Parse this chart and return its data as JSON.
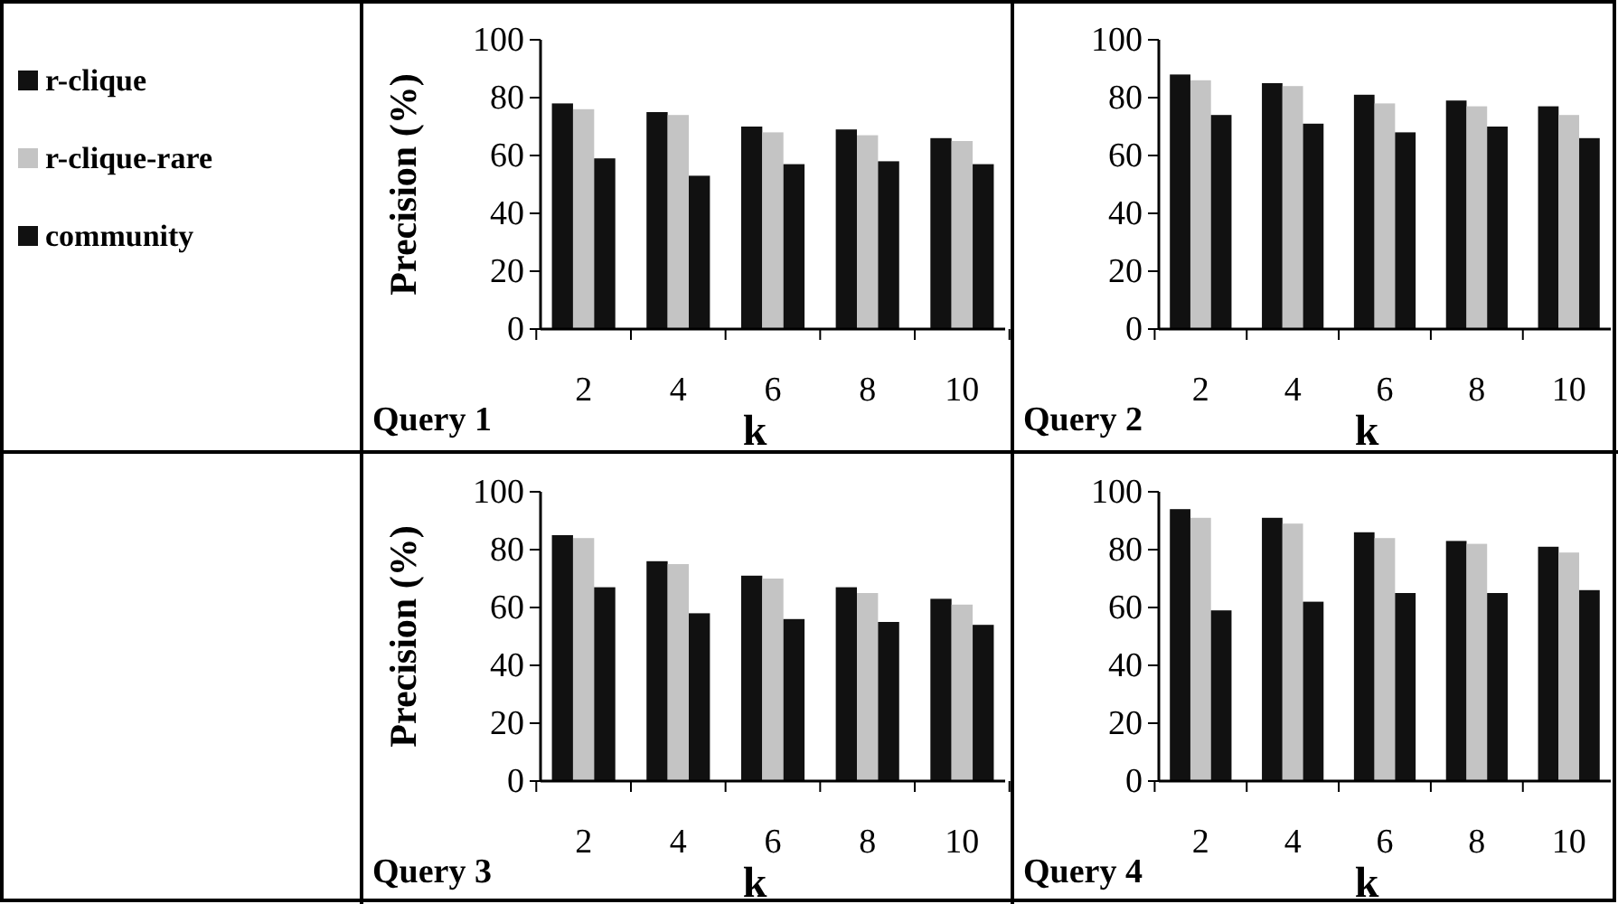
{
  "chart_data": [
    {
      "type": "bar",
      "title": "Query 1",
      "xlabel": "k",
      "ylabel": "Precision (%)",
      "categories": [
        "2",
        "4",
        "6",
        "8",
        "10"
      ],
      "ylim": [
        0,
        100
      ],
      "yticks": [
        0,
        20,
        40,
        60,
        80,
        100
      ],
      "legend": "left",
      "series": [
        {
          "name": "r-clique",
          "color": "#111111",
          "values": [
            78,
            75,
            70,
            69,
            66
          ]
        },
        {
          "name": "r-clique-rare",
          "color": "#c4c4c4",
          "values": [
            76,
            74,
            68,
            67,
            65
          ]
        },
        {
          "name": "community",
          "color": "#111111",
          "values": [
            59,
            53,
            57,
            58,
            57
          ]
        }
      ]
    },
    {
      "type": "bar",
      "title": "Query 2",
      "xlabel": "k",
      "categories": [
        "2",
        "4",
        "6",
        "8",
        "10"
      ],
      "ylim": [
        0,
        100
      ],
      "yticks": [
        0,
        20,
        40,
        60,
        80,
        100
      ],
      "series": [
        {
          "color": "#111111",
          "values": [
            88,
            85,
            81,
            79,
            77
          ]
        },
        {
          "color": "#c4c4c4",
          "values": [
            86,
            84,
            78,
            77,
            74
          ]
        },
        {
          "color": "#111111",
          "values": [
            74,
            71,
            68,
            70,
            66
          ]
        }
      ]
    },
    {
      "type": "bar",
      "title": "Query 3",
      "xlabel": "k",
      "ylabel": "Precision (%)",
      "categories": [
        "2",
        "4",
        "6",
        "8",
        "10"
      ],
      "ylim": [
        0,
        100
      ],
      "yticks": [
        0,
        20,
        40,
        60,
        80,
        100
      ],
      "series": [
        {
          "color": "#111111",
          "values": [
            85,
            76,
            71,
            67,
            63
          ]
        },
        {
          "color": "#c4c4c4",
          "values": [
            84,
            75,
            70,
            65,
            61
          ]
        },
        {
          "color": "#111111",
          "values": [
            67,
            58,
            56,
            55,
            54
          ]
        }
      ]
    },
    {
      "type": "bar",
      "title": "Query 4",
      "xlabel": "k",
      "categories": [
        "2",
        "4",
        "6",
        "8",
        "10"
      ],
      "ylim": [
        0,
        100
      ],
      "yticks": [
        0,
        20,
        40,
        60,
        80,
        100
      ],
      "series": [
        {
          "color": "#111111",
          "values": [
            94,
            91,
            86,
            83,
            81
          ]
        },
        {
          "color": "#c4c4c4",
          "values": [
            91,
            89,
            84,
            82,
            79
          ]
        },
        {
          "color": "#111111",
          "values": [
            59,
            62,
            65,
            65,
            66
          ]
        }
      ]
    }
  ]
}
